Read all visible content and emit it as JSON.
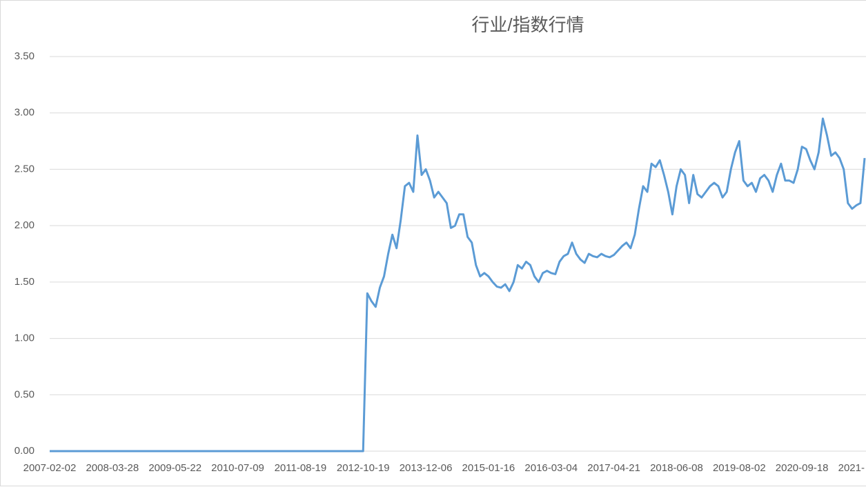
{
  "chart_data": {
    "type": "line",
    "title": "行业/指数行情",
    "categories": [
      "2007-02-02",
      null,
      null,
      null,
      null,
      null,
      null,
      null,
      null,
      null,
      null,
      null,
      null,
      null,
      null,
      "2008-03-28",
      null,
      null,
      null,
      null,
      null,
      null,
      null,
      null,
      null,
      null,
      null,
      null,
      null,
      null,
      "2009-05-22",
      null,
      null,
      null,
      null,
      null,
      null,
      null,
      null,
      null,
      null,
      null,
      null,
      null,
      null,
      "2010-07-09",
      null,
      null,
      null,
      null,
      null,
      null,
      null,
      null,
      null,
      null,
      null,
      null,
      null,
      null,
      "2011-08-19",
      null,
      null,
      null,
      null,
      null,
      null,
      null,
      null,
      null,
      null,
      null,
      null,
      null,
      null,
      "2012-10-19",
      null,
      null,
      null,
      null,
      null,
      null,
      null,
      null,
      null,
      null,
      null,
      null,
      null,
      null,
      "2013-12-06",
      null,
      null,
      null,
      null,
      null,
      null,
      null,
      null,
      null,
      null,
      null,
      null,
      null,
      null,
      "2015-01-16",
      null,
      null,
      null,
      null,
      null,
      null,
      null,
      null,
      null,
      null,
      null,
      null,
      null,
      null,
      "2016-03-04",
      null,
      null,
      null,
      null,
      null,
      null,
      null,
      null,
      null,
      null,
      null,
      null,
      null,
      null,
      "2017-04-21",
      null,
      null,
      null,
      null,
      null,
      null,
      null,
      null,
      null,
      null,
      null,
      null,
      null,
      null,
      "2018-06-08",
      null,
      null,
      null,
      null,
      null,
      null,
      null,
      null,
      null,
      null,
      null,
      null,
      null,
      null,
      "2019-08-02",
      null,
      null,
      null,
      null,
      null,
      null,
      null,
      null,
      null,
      null,
      null,
      null,
      null,
      null,
      "2020-09-18",
      null,
      null,
      null,
      null,
      null,
      null,
      null,
      null,
      null,
      null,
      null,
      null,
      null,
      null,
      "2021-"
    ],
    "values": [
      0,
      0,
      0,
      0,
      0,
      0,
      0,
      0,
      0,
      0,
      0,
      0,
      0,
      0,
      0,
      0,
      0,
      0,
      0,
      0,
      0,
      0,
      0,
      0,
      0,
      0,
      0,
      0,
      0,
      0,
      0,
      0,
      0,
      0,
      0,
      0,
      0,
      0,
      0,
      0,
      0,
      0,
      0,
      0,
      0,
      0,
      0,
      0,
      0,
      0,
      0,
      0,
      0,
      0,
      0,
      0,
      0,
      0,
      0,
      0,
      0,
      0,
      0,
      0,
      0,
      0,
      0,
      0,
      0,
      0,
      0,
      0,
      0,
      0,
      0,
      0,
      1.4,
      1.33,
      1.28,
      1.45,
      1.55,
      1.75,
      1.92,
      1.8,
      2.05,
      2.35,
      2.38,
      2.3,
      2.8,
      2.45,
      2.5,
      2.4,
      2.25,
      2.3,
      2.25,
      2.2,
      1.98,
      2.0,
      2.1,
      2.1,
      1.9,
      1.85,
      1.65,
      1.55,
      1.58,
      1.55,
      1.5,
      1.46,
      1.45,
      1.48,
      1.42,
      1.5,
      1.65,
      1.62,
      1.68,
      1.65,
      1.55,
      1.5,
      1.58,
      1.6,
      1.58,
      1.57,
      1.68,
      1.73,
      1.75,
      1.85,
      1.75,
      1.7,
      1.67,
      1.75,
      1.73,
      1.72,
      1.75,
      1.73,
      1.72,
      1.74,
      1.78,
      1.82,
      1.85,
      1.8,
      1.92,
      2.15,
      2.35,
      2.3,
      2.55,
      2.52,
      2.58,
      2.45,
      2.3,
      2.1,
      2.35,
      2.5,
      2.45,
      2.2,
      2.45,
      2.28,
      2.25,
      2.3,
      2.35,
      2.38,
      2.35,
      2.25,
      2.3,
      2.5,
      2.65,
      2.75,
      2.4,
      2.35,
      2.38,
      2.3,
      2.42,
      2.45,
      2.4,
      2.3,
      2.45,
      2.55,
      2.4,
      2.4,
      2.38,
      2.5,
      2.7,
      2.68,
      2.58,
      2.5,
      2.65,
      2.95,
      2.8,
      2.62,
      2.65,
      2.6,
      2.5,
      2.2,
      2.15,
      2.18,
      2.2,
      2.6
    ],
    "color": "#5b9bd5",
    "ylim": [
      0,
      3.5
    ],
    "yticks": [
      {
        "value": 0,
        "label": "0.00"
      },
      {
        "value": 0.5,
        "label": "0.50"
      },
      {
        "value": 1,
        "label": "1.00"
      },
      {
        "value": 1.5,
        "label": "1.50"
      },
      {
        "value": 2,
        "label": "2.00"
      },
      {
        "value": 2.5,
        "label": "2.50"
      },
      {
        "value": 3,
        "label": "3.00"
      },
      {
        "value": 3.5,
        "label": "3.50"
      }
    ],
    "grid": true
  }
}
